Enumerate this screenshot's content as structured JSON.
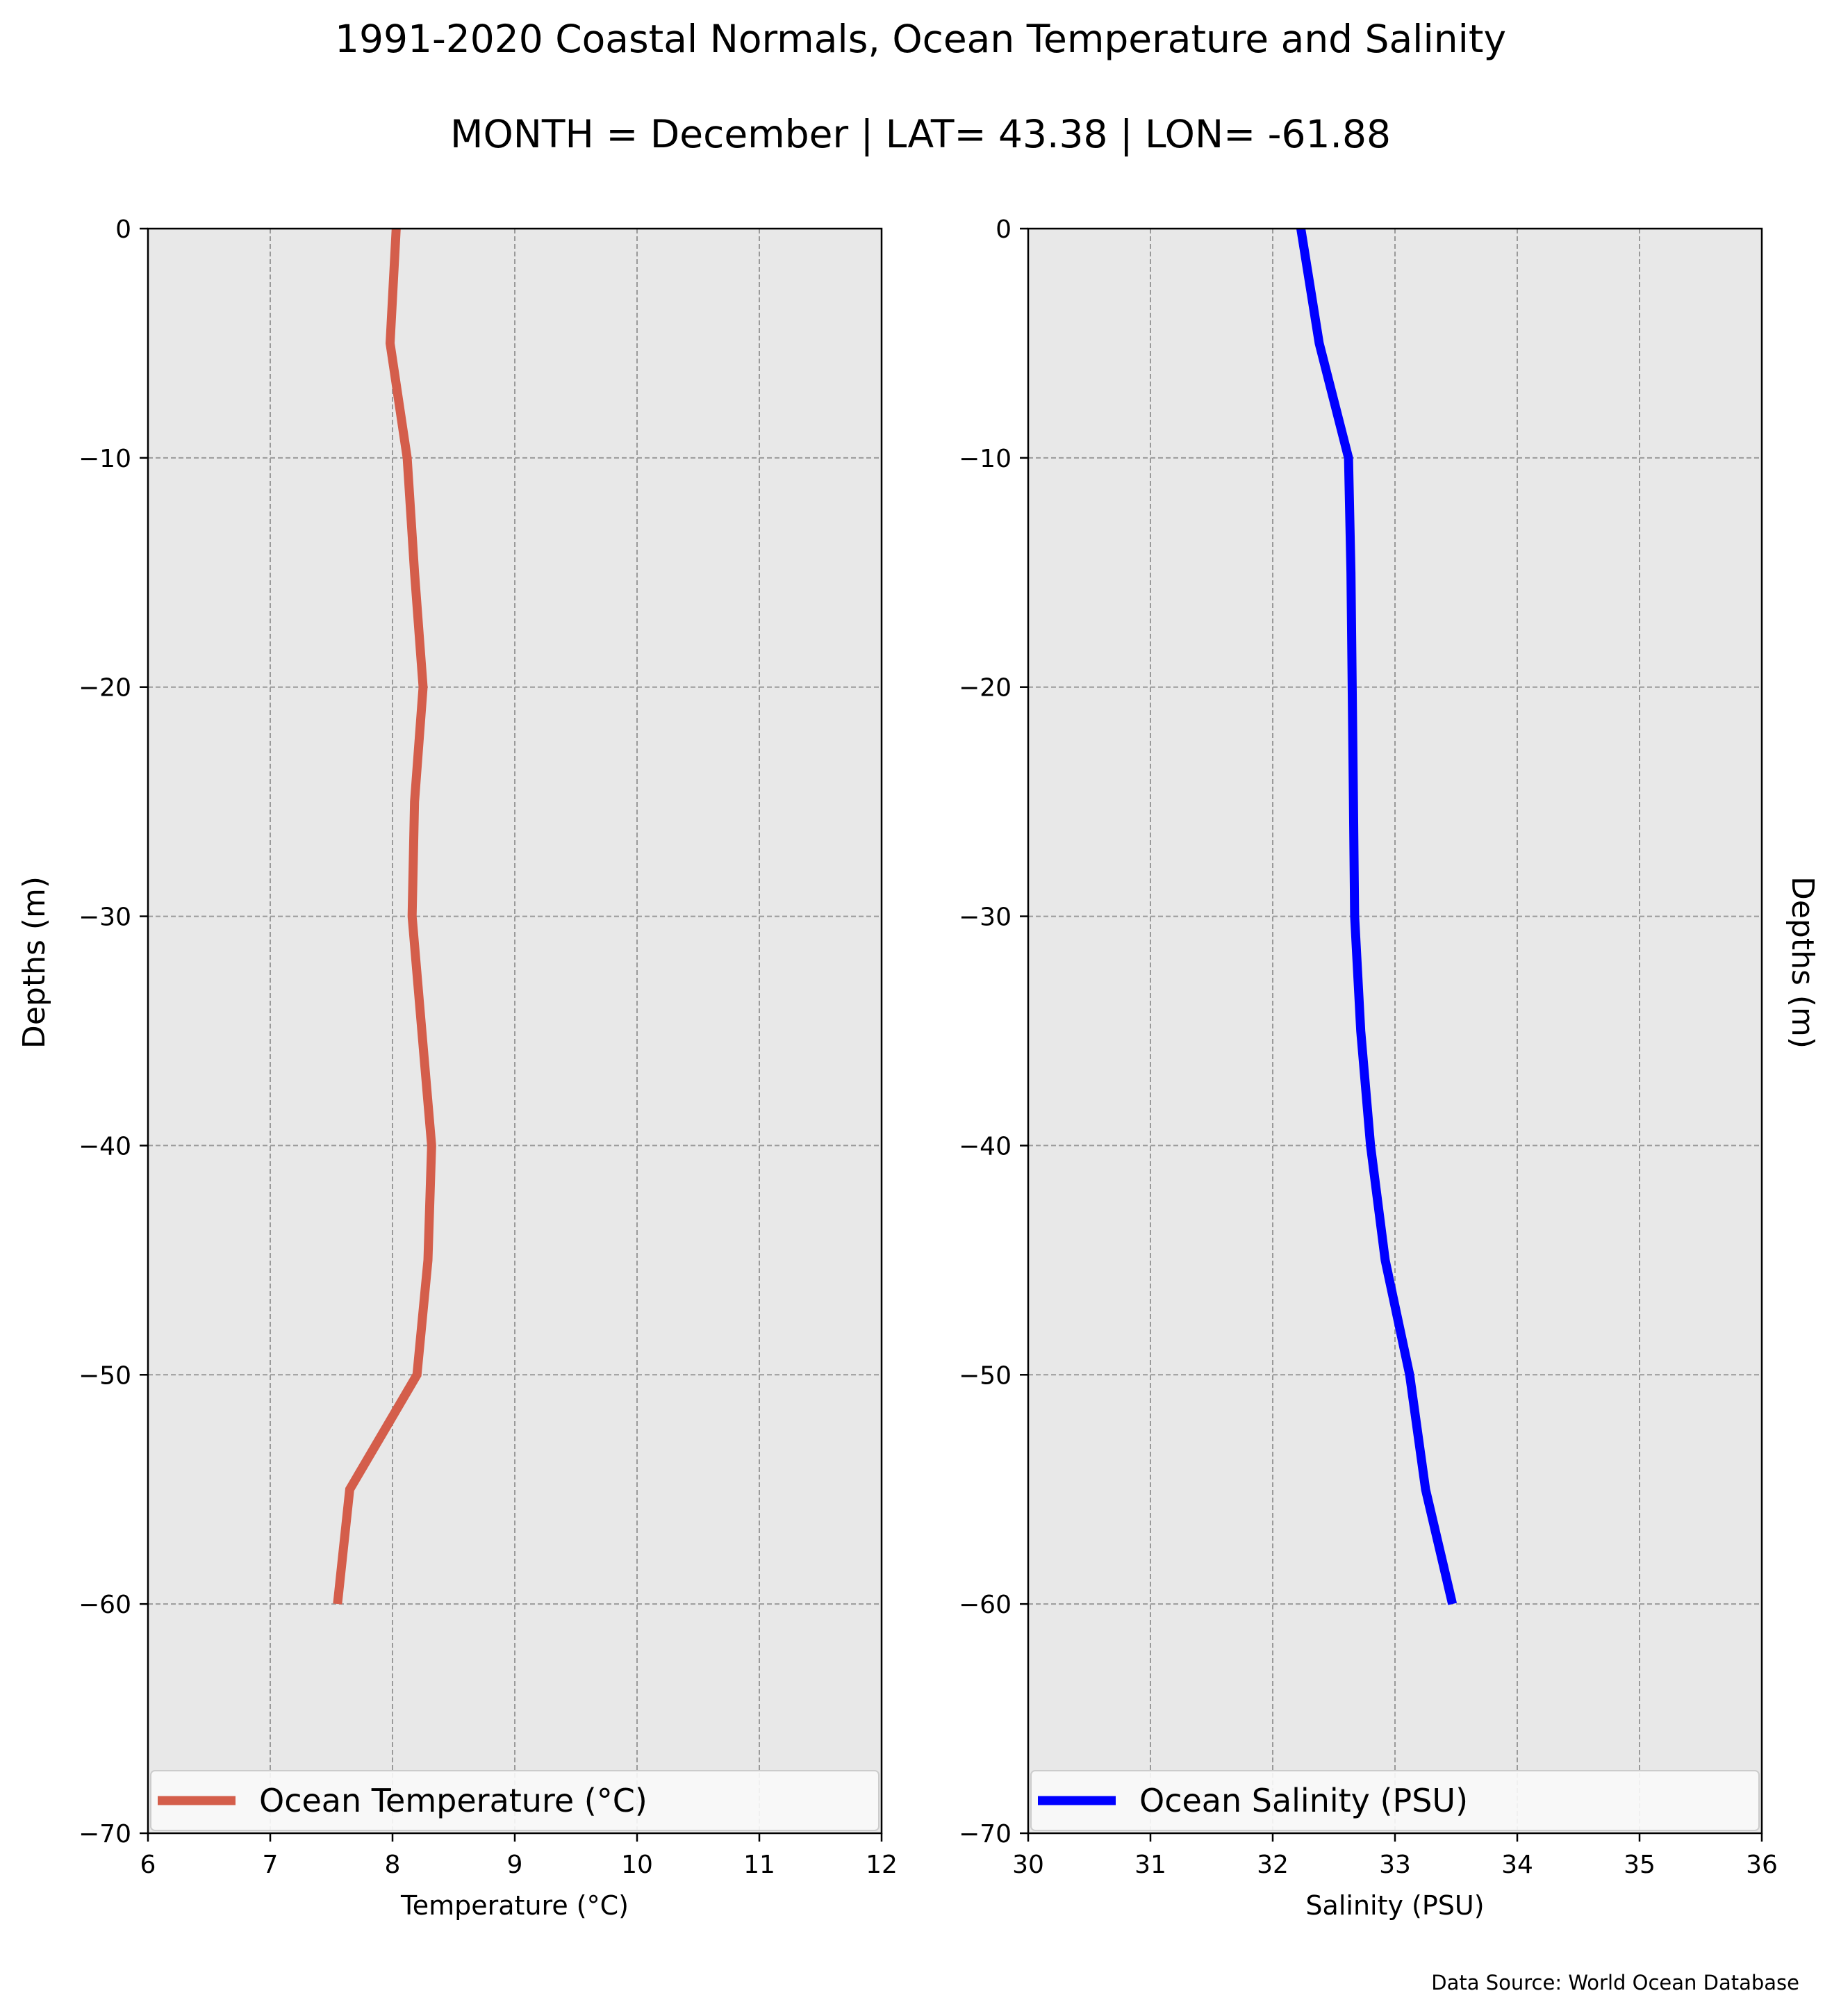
{
  "figure": {
    "title": "1991-2020 Coastal Normals, Ocean Temperature and Salinity",
    "subtitle": "MONTH = December | LAT= 43.38 | LON= -61.88",
    "source": "Data Source: World Ocean Database"
  },
  "chart_data": [
    {
      "type": "line",
      "xlabel": "Temperature (°C)",
      "ylabel": "Depths (m)",
      "xlim": [
        6,
        12
      ],
      "ylim": [
        -70,
        0
      ],
      "xticks": [
        6,
        7,
        8,
        9,
        10,
        11,
        12
      ],
      "yticks": [
        0,
        -10,
        -20,
        -30,
        -40,
        -50,
        -60,
        -70
      ],
      "ytick_labels": [
        "0",
        "−10",
        "−20",
        "−30",
        "−40",
        "−50",
        "−60",
        "−70"
      ],
      "grid": true,
      "legend_position": "bottom",
      "series": [
        {
          "name": "Ocean Temperature (°C)",
          "color": "#d45e4b",
          "x": [
            8.03,
            7.98,
            8.12,
            8.18,
            8.25,
            8.18,
            8.16,
            8.24,
            8.32,
            8.29,
            8.2,
            7.98,
            7.65,
            7.55
          ],
          "y": [
            0,
            -5,
            -10,
            -15,
            -20,
            -25,
            -30,
            -35,
            -40,
            -45,
            -50,
            -52,
            -55,
            -60
          ]
        }
      ]
    },
    {
      "type": "line",
      "xlabel": "Salinity (PSU)",
      "ylabel": "Depths (m)",
      "xlim": [
        30,
        36
      ],
      "ylim": [
        -70,
        0
      ],
      "xticks": [
        30,
        31,
        32,
        33,
        34,
        35,
        36
      ],
      "yticks": [
        0,
        -10,
        -20,
        -30,
        -40,
        -50,
        -60,
        -70
      ],
      "ytick_labels": [
        "0",
        "−10",
        "−20",
        "−30",
        "−40",
        "−50",
        "−60",
        "−70"
      ],
      "grid": true,
      "legend_position": "bottom",
      "series": [
        {
          "name": "Ocean Salinity (PSU)",
          "color": "#0000ff",
          "x": [
            32.23,
            32.38,
            32.62,
            32.64,
            32.65,
            32.66,
            32.67,
            32.72,
            32.8,
            32.92,
            33.12,
            33.25,
            33.47
          ],
          "y": [
            0,
            -5,
            -10,
            -15,
            -20,
            -25,
            -30,
            -35,
            -40,
            -45,
            -50,
            -55,
            -60
          ]
        }
      ]
    }
  ]
}
